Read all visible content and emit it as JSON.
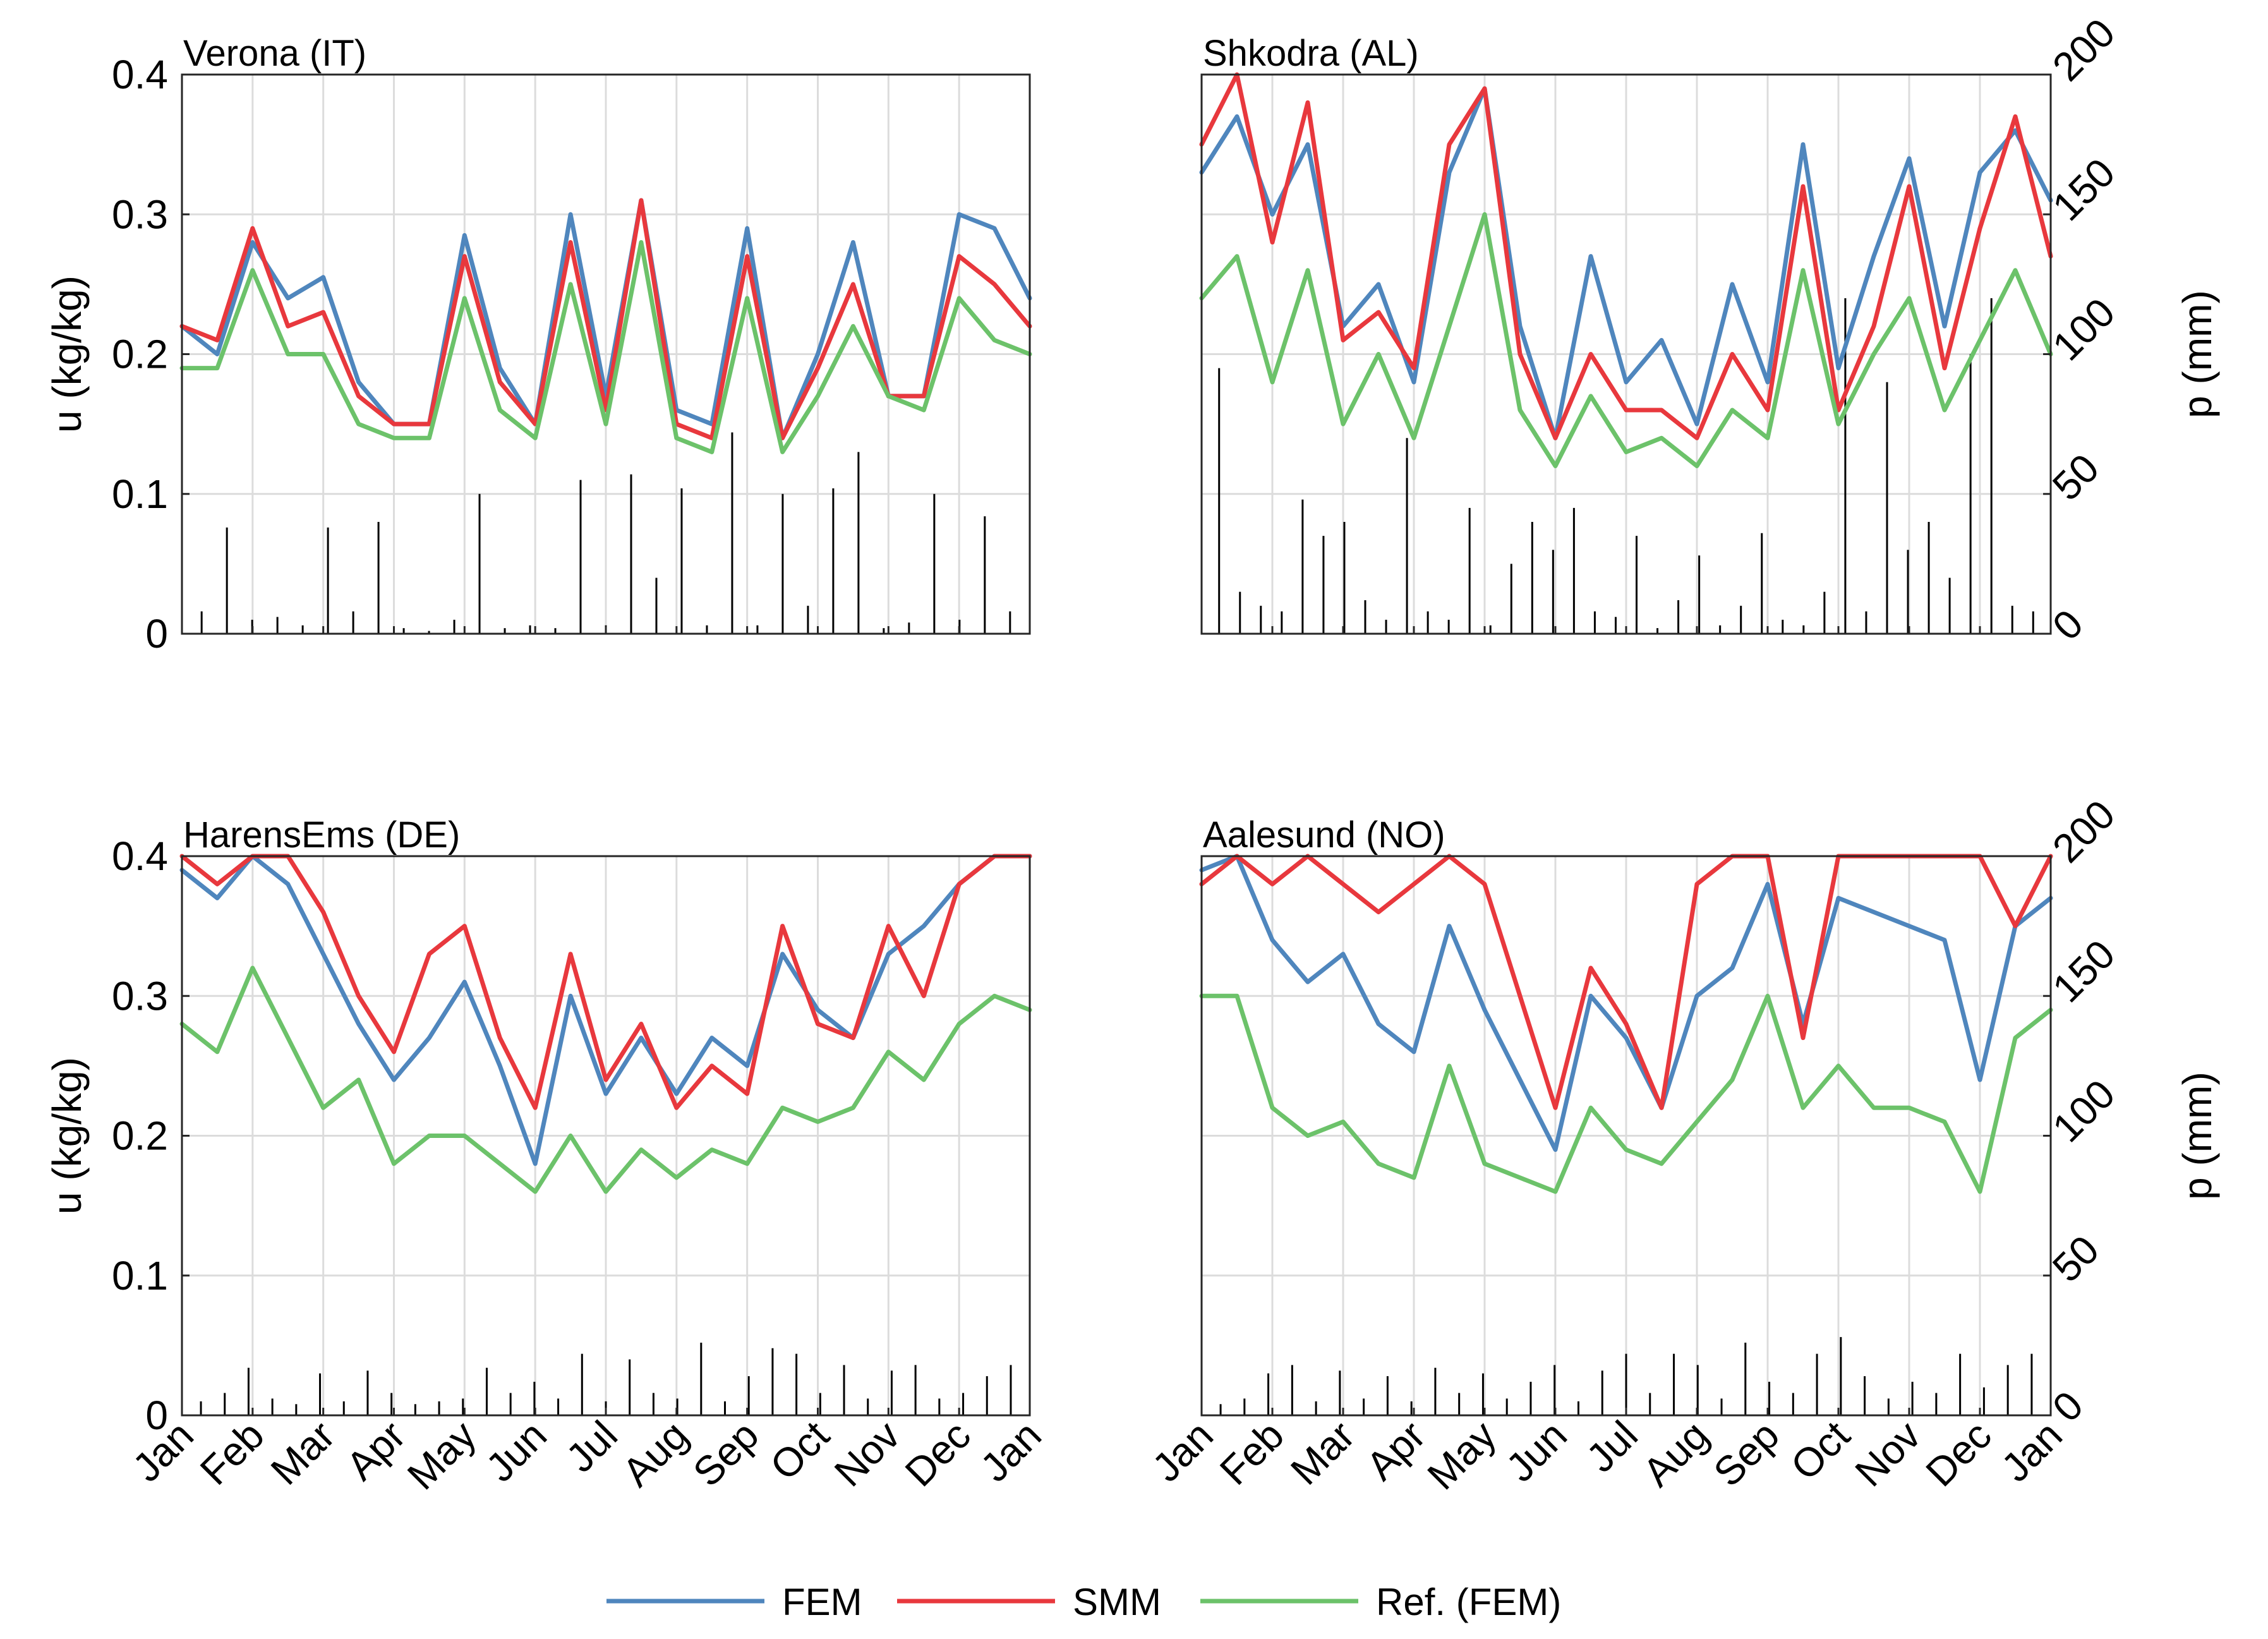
{
  "chart_data": [
    {
      "type": "line",
      "title": "Verona (IT)",
      "ylabel": "u (kg/kg)",
      "ylim": [
        0,
        0.4
      ],
      "yticks": [
        "0",
        "0.1",
        "0.2",
        "0.3",
        "0.4"
      ],
      "xticks": [],
      "right_ylabel": "",
      "right_ylim": [
        0,
        200
      ],
      "right_yticks": [],
      "x": [
        0,
        0.5,
        1,
        1.5,
        2,
        2.5,
        3,
        3.5,
        4,
        4.5,
        5,
        5.5,
        6,
        6.5,
        7,
        7.5,
        8,
        8.5,
        9,
        9.5,
        10,
        10.5,
        11,
        11.5,
        12
      ],
      "series": [
        {
          "name": "FEM",
          "color": "#4f86bd",
          "values": [
            0.22,
            0.2,
            0.28,
            0.24,
            0.255,
            0.18,
            0.15,
            0.15,
            0.285,
            0.19,
            0.15,
            0.3,
            0.17,
            0.31,
            0.16,
            0.15,
            0.29,
            0.14,
            0.2,
            0.28,
            0.17,
            0.17,
            0.3,
            0.29,
            0.24
          ]
        },
        {
          "name": "SMM",
          "color": "#e8383d",
          "values": [
            0.22,
            0.21,
            0.29,
            0.22,
            0.23,
            0.17,
            0.15,
            0.15,
            0.27,
            0.18,
            0.15,
            0.28,
            0.16,
            0.31,
            0.15,
            0.14,
            0.27,
            0.14,
            0.19,
            0.25,
            0.17,
            0.17,
            0.27,
            0.25,
            0.22
          ]
        },
        {
          "name": "Ref. (FEM)",
          "color": "#6cc26a",
          "values": [
            0.19,
            0.19,
            0.26,
            0.2,
            0.2,
            0.15,
            0.14,
            0.14,
            0.24,
            0.16,
            0.14,
            0.25,
            0.15,
            0.28,
            0.14,
            0.13,
            0.24,
            0.13,
            0.17,
            0.22,
            0.17,
            0.16,
            0.24,
            0.21,
            0.2
          ]
        }
      ],
      "precip_mm": [
        8,
        38,
        5,
        6,
        3,
        38,
        8,
        40,
        2,
        1,
        5,
        50,
        2,
        3,
        2,
        55,
        3,
        57,
        20,
        52,
        3,
        72,
        3,
        50,
        10,
        52,
        65,
        2,
        4,
        50,
        5,
        42,
        8
      ]
    },
    {
      "type": "line",
      "title": "Shkodra (AL)",
      "ylabel": "",
      "ylim": [
        0,
        0.4
      ],
      "yticks": [],
      "xticks": [],
      "right_ylabel": "p (mm)",
      "right_ylim": [
        0,
        200
      ],
      "right_yticks": [
        "0",
        "50",
        "100",
        "150",
        "200"
      ],
      "x": [
        0,
        0.5,
        1,
        1.5,
        2,
        2.5,
        3,
        3.5,
        4,
        4.5,
        5,
        5.5,
        6,
        6.5,
        7,
        7.5,
        8,
        8.5,
        9,
        9.5,
        10,
        10.5,
        11,
        11.5,
        12
      ],
      "series": [
        {
          "name": "FEM",
          "color": "#4f86bd",
          "values": [
            0.33,
            0.37,
            0.3,
            0.35,
            0.22,
            0.25,
            0.18,
            0.33,
            0.39,
            0.22,
            0.14,
            0.27,
            0.18,
            0.21,
            0.15,
            0.25,
            0.18,
            0.35,
            0.19,
            0.27,
            0.34,
            0.22,
            0.33,
            0.36,
            0.31
          ]
        },
        {
          "name": "SMM",
          "color": "#e8383d",
          "values": [
            0.35,
            0.4,
            0.28,
            0.38,
            0.21,
            0.23,
            0.19,
            0.35,
            0.39,
            0.2,
            0.14,
            0.2,
            0.16,
            0.16,
            0.14,
            0.2,
            0.16,
            0.32,
            0.16,
            0.22,
            0.32,
            0.19,
            0.29,
            0.37,
            0.27
          ]
        },
        {
          "name": "Ref. (FEM)",
          "color": "#6cc26a",
          "values": [
            0.24,
            0.27,
            0.18,
            0.26,
            0.15,
            0.2,
            0.14,
            0.22,
            0.3,
            0.16,
            0.12,
            0.17,
            0.13,
            0.14,
            0.12,
            0.16,
            0.14,
            0.26,
            0.15,
            0.2,
            0.24,
            0.16,
            0.21,
            0.26,
            0.2
          ]
        }
      ],
      "precip_mm": [
        95,
        15,
        10,
        8,
        48,
        35,
        40,
        12,
        5,
        70,
        8,
        5,
        45,
        3,
        25,
        40,
        30,
        45,
        8,
        6,
        35,
        2,
        12,
        28,
        3,
        10,
        36,
        5,
        3,
        15,
        120,
        8,
        90,
        30,
        40,
        20,
        100,
        120,
        10,
        8
      ]
    },
    {
      "type": "line",
      "title": "HarensEms (DE)",
      "ylabel": "u (kg/kg)",
      "ylim": [
        0,
        0.4
      ],
      "yticks": [
        "0",
        "0.1",
        "0.2",
        "0.3",
        "0.4"
      ],
      "xticks": [
        "Jan",
        "Feb",
        "Mar",
        "Apr",
        "May",
        "Jun",
        "Jul",
        "Aug",
        "Sep",
        "Oct",
        "Nov",
        "Dec",
        "Jan"
      ],
      "right_ylabel": "",
      "right_ylim": [
        0,
        200
      ],
      "right_yticks": [],
      "x": [
        0,
        0.5,
        1,
        1.5,
        2,
        2.5,
        3,
        3.5,
        4,
        4.5,
        5,
        5.5,
        6,
        6.5,
        7,
        7.5,
        8,
        8.5,
        9,
        9.5,
        10,
        10.5,
        11,
        11.5,
        12
      ],
      "series": [
        {
          "name": "FEM",
          "color": "#4f86bd",
          "values": [
            0.39,
            0.37,
            0.4,
            0.38,
            0.33,
            0.28,
            0.24,
            0.27,
            0.31,
            0.25,
            0.18,
            0.3,
            0.23,
            0.27,
            0.23,
            0.27,
            0.25,
            0.33,
            0.29,
            0.27,
            0.33,
            0.35,
            0.38,
            0.4,
            0.4
          ]
        },
        {
          "name": "SMM",
          "color": "#e8383d",
          "values": [
            0.4,
            0.38,
            0.4,
            0.4,
            0.36,
            0.3,
            0.26,
            0.33,
            0.35,
            0.27,
            0.22,
            0.33,
            0.24,
            0.28,
            0.22,
            0.25,
            0.23,
            0.35,
            0.28,
            0.27,
            0.35,
            0.3,
            0.38,
            0.4,
            0.4
          ]
        },
        {
          "name": "Ref. (FEM)",
          "color": "#6cc26a",
          "values": [
            0.28,
            0.26,
            0.32,
            0.27,
            0.22,
            0.24,
            0.18,
            0.2,
            0.2,
            0.18,
            0.16,
            0.2,
            0.16,
            0.19,
            0.17,
            0.19,
            0.18,
            0.22,
            0.21,
            0.22,
            0.26,
            0.24,
            0.28,
            0.3,
            0.29
          ]
        }
      ],
      "precip_mm": [
        5,
        8,
        17,
        6,
        4,
        15,
        5,
        16,
        8,
        4,
        5,
        6,
        17,
        8,
        12,
        6,
        22,
        5,
        20,
        8,
        6,
        26,
        5,
        14,
        24,
        22,
        8,
        18,
        6,
        16,
        18,
        6,
        8,
        14,
        18
      ]
    },
    {
      "type": "line",
      "title": "Aalesund (NO)",
      "ylabel": "",
      "ylim": [
        0,
        0.4
      ],
      "yticks": [],
      "xticks": [
        "Jan",
        "Feb",
        "Mar",
        "Apr",
        "May",
        "Jun",
        "Jul",
        "Aug",
        "Sep",
        "Oct",
        "Nov",
        "Dec",
        "Jan"
      ],
      "right_ylabel": "p (mm)",
      "right_ylim": [
        0,
        200
      ],
      "right_yticks": [
        "0",
        "50",
        "100",
        "150",
        "200"
      ],
      "x": [
        0,
        0.5,
        1,
        1.5,
        2,
        2.5,
        3,
        3.5,
        4,
        4.5,
        5,
        5.5,
        6,
        6.5,
        7,
        7.5,
        8,
        8.5,
        9,
        9.5,
        10,
        10.5,
        11,
        11.5,
        12
      ],
      "series": [
        {
          "name": "FEM",
          "color": "#4f86bd",
          "values": [
            0.39,
            0.4,
            0.34,
            0.31,
            0.33,
            0.28,
            0.26,
            0.35,
            0.29,
            0.24,
            0.19,
            0.3,
            0.27,
            0.22,
            0.3,
            0.32,
            0.38,
            0.28,
            0.37,
            0.36,
            0.35,
            0.34,
            0.24,
            0.35,
            0.37
          ]
        },
        {
          "name": "SMM",
          "color": "#e8383d",
          "values": [
            0.38,
            0.4,
            0.38,
            0.4,
            0.38,
            0.36,
            0.38,
            0.4,
            0.38,
            0.3,
            0.22,
            0.32,
            0.28,
            0.22,
            0.38,
            0.4,
            0.4,
            0.27,
            0.4,
            0.4,
            0.4,
            0.4,
            0.4,
            0.35,
            0.4
          ]
        },
        {
          "name": "Ref. (FEM)",
          "color": "#6cc26a",
          "values": [
            0.3,
            0.3,
            0.22,
            0.2,
            0.21,
            0.18,
            0.17,
            0.25,
            0.18,
            0.17,
            0.16,
            0.22,
            0.19,
            0.18,
            0.21,
            0.24,
            0.3,
            0.22,
            0.25,
            0.22,
            0.22,
            0.21,
            0.16,
            0.27,
            0.29
          ]
        }
      ],
      "precip_mm": [
        4,
        6,
        15,
        18,
        5,
        16,
        6,
        14,
        5,
        17,
        8,
        15,
        6,
        12,
        18,
        5,
        16,
        22,
        8,
        22,
        18,
        6,
        26,
        12,
        8,
        22,
        28,
        14,
        6,
        12,
        8,
        22,
        10,
        18,
        22
      ]
    }
  ],
  "legend": {
    "items": [
      {
        "label": "FEM",
        "color": "#4f86bd"
      },
      {
        "label": "SMM",
        "color": "#e8383d"
      },
      {
        "label": "Ref. (FEM)",
        "color": "#6cc26a"
      }
    ]
  }
}
